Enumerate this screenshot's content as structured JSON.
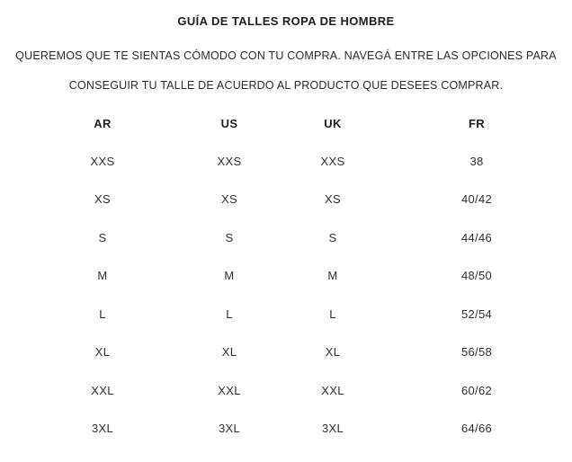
{
  "page": {
    "title": "GUÍA DE TALLES ROPA DE HOMBRE",
    "subtitle_lines": [
      "QUEREMOS QUE TE SIENTAS CÓMODO CON TU COMPRA. NAVEGÁ ENTRE LAS OPCIONES PARA",
      "CONSEGUIR TU TALLE DE ACUERDO AL PRODUCTO QUE DESEES COMPRAR."
    ]
  },
  "size_table": {
    "columns": [
      "AR",
      "US",
      "UK",
      "FR"
    ],
    "rows": [
      [
        "XXS",
        "XXS",
        "XXS",
        "38"
      ],
      [
        "XS",
        "XS",
        "XS",
        "40/42"
      ],
      [
        "S",
        "S",
        "S",
        "44/46"
      ],
      [
        "M",
        "M",
        "M",
        "48/50"
      ],
      [
        "L",
        "L",
        "L",
        "52/54"
      ],
      [
        "XL",
        "XL",
        "XL",
        "56/58"
      ],
      [
        "XXL",
        "XXL",
        "XXL",
        "60/62"
      ],
      [
        "3XL",
        "3XL",
        "3XL",
        "64/66"
      ]
    ]
  },
  "colors": {
    "background": "#ffffff",
    "text": "#262626"
  }
}
